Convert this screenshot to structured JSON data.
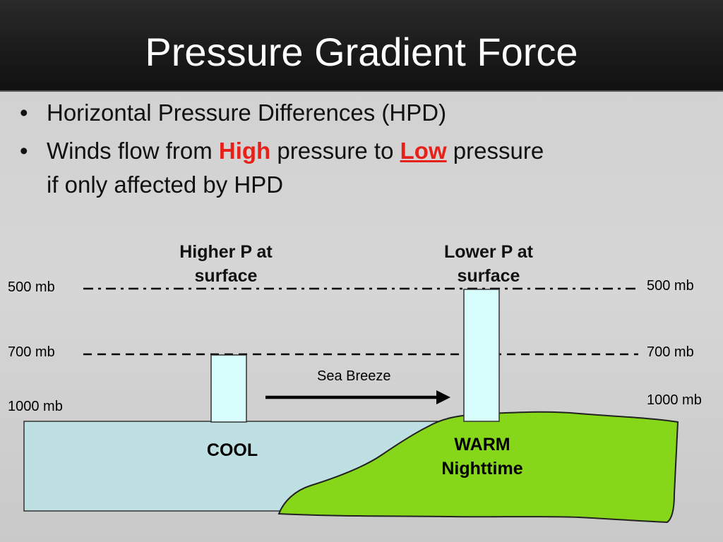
{
  "title": "Pressure Gradient Force",
  "bullets": [
    {
      "text": "Horizontal Pressure Differences (HPD)"
    },
    {
      "part1": "Winds flow from ",
      "high": "High",
      "part2": " pressure to ",
      "low": "Low",
      "part3": " pressure",
      "line2": "if only affected by HPD"
    }
  ],
  "bullet_symbol": "•",
  "colors": {
    "highlight": "#e8201a",
    "water": "#bfe0e3",
    "land": "#86d61a",
    "column": "#d8fdfd"
  },
  "diagram": {
    "left_column_label": [
      "Higher P at",
      "surface"
    ],
    "right_column_label": [
      "Lower P at",
      "surface"
    ],
    "levels_left": [
      "500 mb",
      "700 mb",
      "1000 mb"
    ],
    "levels_right": [
      "500 mb",
      "700 mb",
      "1000 mb"
    ],
    "arrow_label": "Sea Breeze",
    "cool_label": "COOL",
    "warm_label": [
      "WARM",
      "Nighttime"
    ]
  }
}
